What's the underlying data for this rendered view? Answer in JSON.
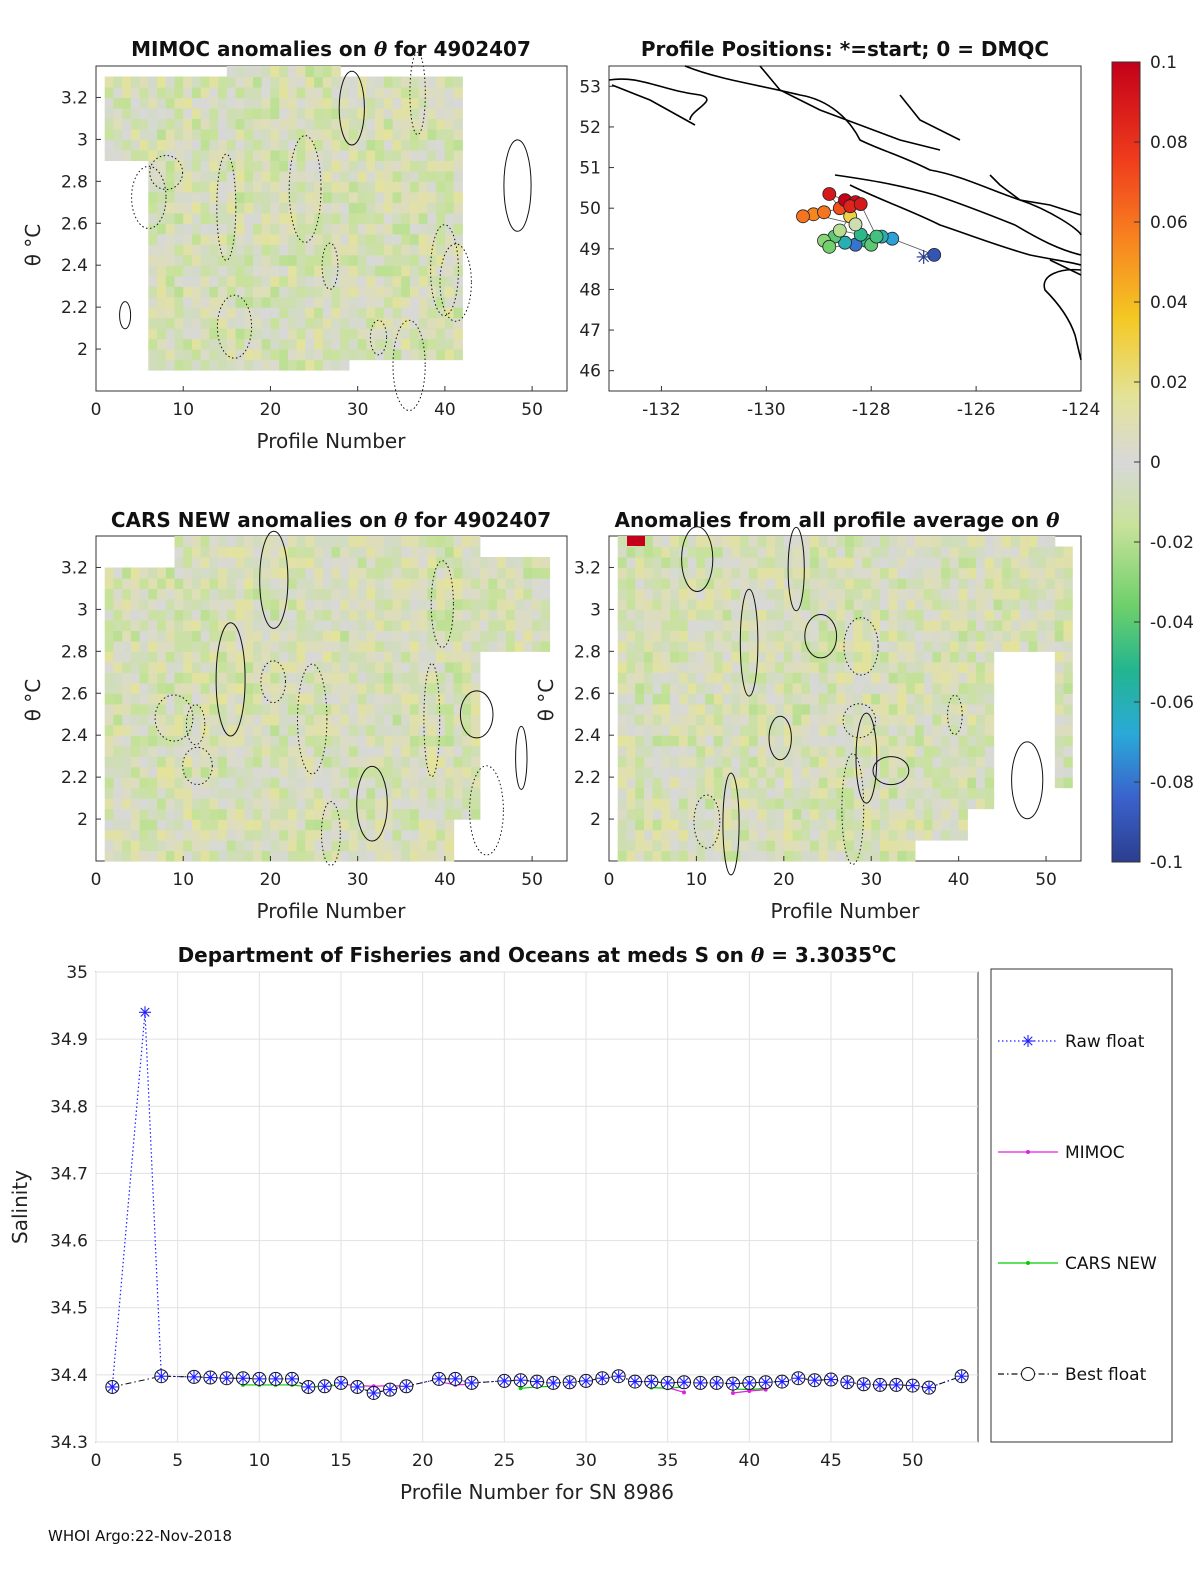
{
  "footer": "WHOI Argo:22-Nov-2018",
  "colors": {
    "raw": "#1f1fff",
    "mimoc": "#e020e0",
    "cars": "#00d000",
    "best_edge": "#111111",
    "grid": "#e1e1e1",
    "field": "#d8d8d8"
  },
  "chart_data": [
    {
      "type": "heatmap",
      "title_prefix": "MIMOC anomalies on ",
      "title_theta": "θ",
      "title_suffix": "  for 4902407",
      "xlabel": "Profile Number",
      "ylabel": "θ °C",
      "xlim": [
        0,
        54
      ],
      "ylim": [
        1.8,
        3.35
      ],
      "xticks": [
        "0",
        "10",
        "20",
        "30",
        "40",
        "50"
      ],
      "yticks": [
        "2",
        "2.2",
        "2.4",
        "2.6",
        "2.8",
        "3",
        "3.2"
      ]
    },
    {
      "type": "scatter",
      "title": "Profile Positions: *=start; 0 = DMQC",
      "xlim": [
        -133,
        -124
      ],
      "ylim": [
        45.5,
        53.5
      ],
      "xticks": [
        "-132",
        "-130",
        "-128",
        "-126",
        "-124"
      ],
      "yticks": [
        "46",
        "47",
        "48",
        "49",
        "50",
        "51",
        "52",
        "53"
      ],
      "start": {
        "lon": -127.0,
        "lat": 48.8
      },
      "points": [
        {
          "lon": -126.8,
          "lat": 48.85,
          "anom": -0.09
        },
        {
          "lon": -127.6,
          "lat": 49.25,
          "anom": -0.07
        },
        {
          "lon": -127.8,
          "lat": 49.3,
          "anom": -0.06
        },
        {
          "lon": -128.1,
          "lat": 49.2,
          "anom": -0.05
        },
        {
          "lon": -128.3,
          "lat": 49.1,
          "anom": -0.08
        },
        {
          "lon": -128.5,
          "lat": 49.15,
          "anom": -0.06
        },
        {
          "lon": -128.7,
          "lat": 49.3,
          "anom": -0.04
        },
        {
          "lon": -128.9,
          "lat": 49.2,
          "anom": -0.03
        },
        {
          "lon": -128.6,
          "lat": 49.45,
          "anom": -0.02
        },
        {
          "lon": -128.2,
          "lat": 49.35,
          "anom": -0.05
        },
        {
          "lon": -128.0,
          "lat": 49.1,
          "anom": -0.04
        },
        {
          "lon": -128.8,
          "lat": 49.05,
          "anom": -0.035
        },
        {
          "lon": -128.4,
          "lat": 49.8,
          "anom": 0.03
        },
        {
          "lon": -128.3,
          "lat": 49.6,
          "anom": -0.01
        },
        {
          "lon": -129.1,
          "lat": 49.85,
          "anom": 0.055
        },
        {
          "lon": -129.3,
          "lat": 49.8,
          "anom": 0.06
        },
        {
          "lon": -128.9,
          "lat": 49.9,
          "anom": 0.06
        },
        {
          "lon": -128.6,
          "lat": 50.0,
          "anom": 0.07
        },
        {
          "lon": -128.8,
          "lat": 50.35,
          "anom": 0.09
        },
        {
          "lon": -128.5,
          "lat": 50.2,
          "anom": 0.1
        },
        {
          "lon": -128.3,
          "lat": 50.15,
          "anom": 0.095
        },
        {
          "lon": -128.4,
          "lat": 50.05,
          "anom": 0.085
        },
        {
          "lon": -128.2,
          "lat": 50.1,
          "anom": 0.09
        },
        {
          "lon": -127.9,
          "lat": 49.3,
          "anom": -0.045
        }
      ]
    },
    {
      "type": "heatmap",
      "title_prefix": "CARS NEW anomalies on ",
      "title_theta": "θ",
      "title_suffix": " for 4902407",
      "xlabel": "Profile Number",
      "ylabel": "θ °C",
      "xlim": [
        0,
        54
      ],
      "ylim": [
        1.8,
        3.35
      ],
      "xticks": [
        "0",
        "10",
        "20",
        "30",
        "40",
        "50"
      ],
      "yticks": [
        "2",
        "2.2",
        "2.4",
        "2.6",
        "2.8",
        "3",
        "3.2"
      ]
    },
    {
      "type": "heatmap",
      "title_prefix": "Anomalies from all profile average on ",
      "title_theta": "θ",
      "title_suffix": "",
      "xlabel": "Profile Number",
      "ylabel": "θ °C",
      "xlim": [
        0,
        54
      ],
      "ylim": [
        1.8,
        3.35
      ],
      "xticks": [
        "0",
        "10",
        "20",
        "30",
        "40",
        "50"
      ],
      "yticks": [
        "2",
        "2.2",
        "2.4",
        "2.6",
        "2.8",
        "3",
        "3.2"
      ]
    },
    {
      "type": "colorbar",
      "range": [
        -0.1,
        0.1
      ],
      "ticks": [
        "0.1",
        "0.08",
        "0.06",
        "0.04",
        "0.02",
        "0",
        "-0.02",
        "-0.04",
        "-0.06",
        "-0.08",
        "-0.1"
      ]
    },
    {
      "type": "line",
      "title_prefix": "Department of Fisheries and Oceans at meds S on ",
      "title_theta": "θ",
      "title_value": " = 3.3035",
      "title_deg": "o",
      "title_unit": "C",
      "xlabel": "Profile Number for SN 8986",
      "ylabel": "Salinity",
      "xlim": [
        0,
        54
      ],
      "ylim": [
        34.3,
        35
      ],
      "xticks": [
        "0",
        "5",
        "10",
        "15",
        "20",
        "25",
        "30",
        "35",
        "40",
        "45",
        "50"
      ],
      "yticks": [
        "34.3",
        "34.4",
        "34.5",
        "34.6",
        "34.7",
        "34.8",
        "34.9",
        "35"
      ],
      "legend": [
        "Raw float",
        "MIMOC",
        "CARS NEW",
        "Best float"
      ],
      "series": [
        {
          "name": "Raw float",
          "x": [
            1,
            3,
            4,
            6,
            7,
            8,
            9,
            10,
            11,
            12,
            13,
            14,
            15,
            16,
            17,
            18,
            19,
            21,
            22,
            23,
            25,
            26,
            27,
            28,
            29,
            30,
            31,
            32,
            33,
            34,
            35,
            36,
            37,
            38,
            39,
            40,
            41,
            42,
            43,
            44,
            45,
            46,
            47,
            48,
            49,
            50,
            51,
            53
          ],
          "y": [
            34.382,
            34.94,
            34.398,
            34.397,
            34.396,
            34.395,
            34.395,
            34.394,
            34.394,
            34.394,
            34.382,
            34.383,
            34.388,
            34.382,
            34.373,
            34.378,
            34.383,
            34.394,
            34.394,
            34.388,
            34.391,
            34.392,
            34.39,
            34.388,
            34.389,
            34.391,
            34.395,
            34.398,
            34.39,
            34.39,
            34.388,
            34.389,
            34.388,
            34.388,
            34.387,
            34.388,
            34.389,
            34.39,
            34.395,
            34.392,
            34.393,
            34.389,
            34.386,
            34.385,
            34.385,
            34.384,
            34.381,
            34.398
          ]
        },
        {
          "name": "MIMOC",
          "x": [
            15,
            16,
            17,
            18,
            19,
            21,
            22,
            23,
            35,
            36,
            39,
            40,
            41
          ],
          "y": [
            34.386,
            34.384,
            34.383,
            34.384,
            34.383,
            34.39,
            34.385,
            34.386,
            34.381,
            34.374,
            34.373,
            34.376,
            34.378
          ]
        },
        {
          "name": "CARS NEW",
          "x": [
            9,
            10,
            11,
            12,
            13,
            14,
            15,
            26,
            27,
            28,
            34,
            35,
            36,
            39,
            40,
            41
          ],
          "y": [
            34.385,
            34.385,
            34.385,
            34.385,
            34.382,
            34.383,
            34.385,
            34.38,
            34.382,
            34.383,
            34.381,
            34.38,
            34.382,
            34.379,
            34.378,
            34.38
          ]
        },
        {
          "name": "Best float",
          "x": [
            1,
            4,
            6,
            7,
            8,
            9,
            10,
            11,
            12,
            13,
            14,
            15,
            16,
            17,
            18,
            19,
            21,
            22,
            23,
            25,
            26,
            27,
            28,
            29,
            30,
            31,
            32,
            33,
            34,
            35,
            36,
            37,
            38,
            39,
            40,
            41,
            42,
            43,
            44,
            45,
            46,
            47,
            48,
            49,
            50,
            51,
            53
          ],
          "y": [
            34.382,
            34.398,
            34.397,
            34.396,
            34.395,
            34.395,
            34.394,
            34.394,
            34.394,
            34.382,
            34.383,
            34.388,
            34.382,
            34.373,
            34.378,
            34.383,
            34.394,
            34.394,
            34.388,
            34.391,
            34.392,
            34.39,
            34.388,
            34.389,
            34.391,
            34.395,
            34.398,
            34.39,
            34.39,
            34.388,
            34.389,
            34.388,
            34.388,
            34.387,
            34.388,
            34.389,
            34.39,
            34.395,
            34.392,
            34.393,
            34.389,
            34.386,
            34.385,
            34.385,
            34.384,
            34.381,
            34.398
          ]
        }
      ]
    }
  ]
}
